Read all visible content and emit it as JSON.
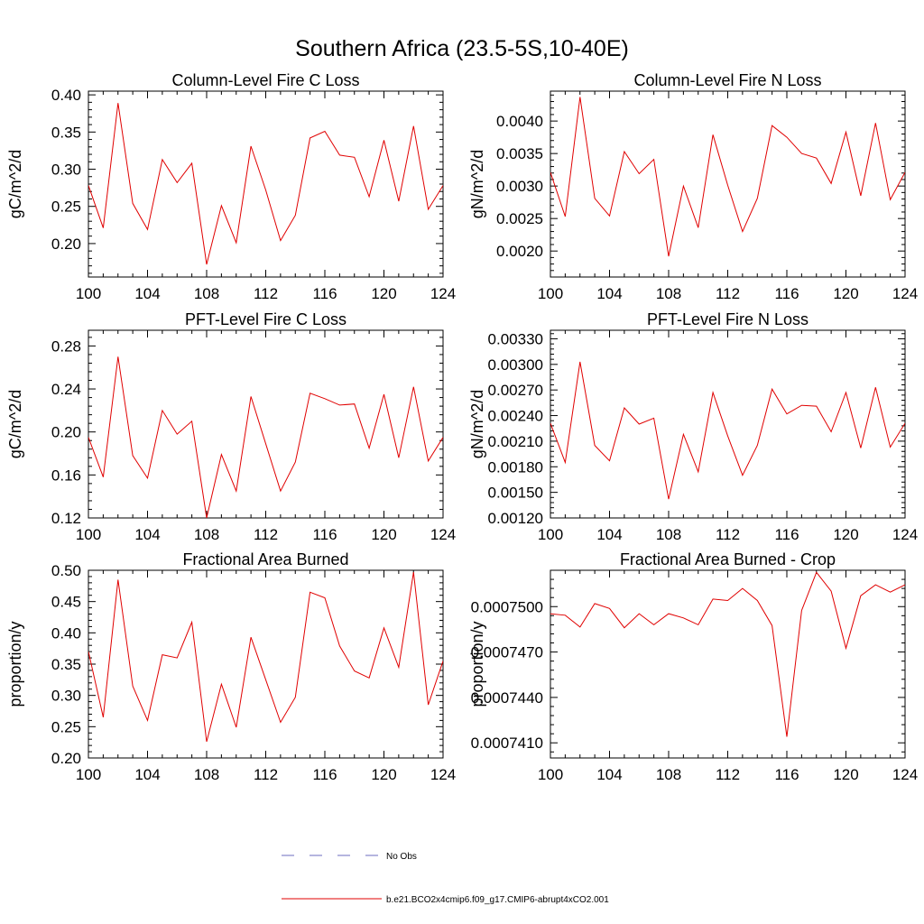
{
  "figure": {
    "title": "Southern Africa (23.5-5S,10-40E)"
  },
  "legend": {
    "entries": [
      {
        "label": "No Obs",
        "color": "#6b6bbf",
        "dash": true
      },
      {
        "label": "b.e21.BCO2x4cmip6.f09_g17.CMIP6-abrupt4xCO2.001",
        "color": "#e00000",
        "dash": false
      }
    ]
  },
  "chart_data": [
    {
      "type": "line",
      "title": "Column-Level Fire C Loss",
      "xlabel": "",
      "ylabel": "gC/m^2/d",
      "xlim": [
        100,
        124
      ],
      "ylim": [
        0.155,
        0.405
      ],
      "xticks": [
        100,
        104,
        108,
        112,
        116,
        120,
        124
      ],
      "yticks": [
        0.2,
        0.25,
        0.3,
        0.35,
        0.4
      ],
      "yticklabels": [
        "0.20",
        "0.25",
        "0.30",
        "0.35",
        "0.40"
      ],
      "series": [
        {
          "name": "b.e21.BCO2x4cmip6.f09_g17.CMIP6-abrupt4xCO2.001",
          "color": "#e00000",
          "x": [
            100,
            101,
            102,
            103,
            104,
            105,
            106,
            107,
            108,
            109,
            110,
            111,
            112,
            113,
            114,
            115,
            116,
            117,
            118,
            119,
            120,
            121,
            122,
            123,
            124
          ],
          "values": [
            0.278,
            0.221,
            0.389,
            0.254,
            0.219,
            0.313,
            0.282,
            0.308,
            0.172,
            0.251,
            0.201,
            0.331,
            0.272,
            0.204,
            0.238,
            0.342,
            0.351,
            0.319,
            0.316,
            0.263,
            0.339,
            0.257,
            0.358,
            0.246,
            0.278
          ]
        }
      ]
    },
    {
      "type": "line",
      "title": "Column-Level Fire N Loss",
      "xlabel": "",
      "ylabel": "gN/m^2/d",
      "xlim": [
        100,
        124
      ],
      "ylim": [
        0.0016,
        0.00446
      ],
      "xticks": [
        100,
        104,
        108,
        112,
        116,
        120,
        124
      ],
      "yticks": [
        0.002,
        0.0025,
        0.003,
        0.0035,
        0.004
      ],
      "yticklabels": [
        "0.0020",
        "0.0025",
        "0.0030",
        "0.0035",
        "0.0040"
      ],
      "series": [
        {
          "name": "b.e21.BCO2x4cmip6.f09_g17.CMIP6-abrupt4xCO2.001",
          "color": "#e00000",
          "x": [
            100,
            101,
            102,
            103,
            104,
            105,
            106,
            107,
            108,
            109,
            110,
            111,
            112,
            113,
            114,
            115,
            116,
            117,
            118,
            119,
            120,
            121,
            122,
            123,
            124
          ],
          "values": [
            0.00321,
            0.00253,
            0.00437,
            0.00281,
            0.00254,
            0.00353,
            0.00319,
            0.00341,
            0.00192,
            0.003,
            0.00236,
            0.00379,
            0.00301,
            0.0023,
            0.00281,
            0.00393,
            0.00375,
            0.0035,
            0.00343,
            0.00304,
            0.00383,
            0.00285,
            0.00397,
            0.00279,
            0.00321
          ]
        }
      ]
    },
    {
      "type": "line",
      "title": "PFT-Level Fire C Loss",
      "xlabel": "",
      "ylabel": "gC/m^2/d",
      "xlim": [
        100,
        124
      ],
      "ylim": [
        0.12,
        0.2946
      ],
      "xticks": [
        100,
        104,
        108,
        112,
        116,
        120,
        124
      ],
      "yticks": [
        0.12,
        0.16,
        0.2,
        0.24,
        0.28
      ],
      "yticklabels": [
        "0.12",
        "0.16",
        "0.20",
        "0.24",
        "0.28"
      ],
      "series": [
        {
          "name": "b.e21.BCO2x4cmip6.f09_g17.CMIP6-abrupt4xCO2.001",
          "color": "#e00000",
          "x": [
            100,
            101,
            102,
            103,
            104,
            105,
            106,
            107,
            108,
            109,
            110,
            111,
            112,
            113,
            114,
            115,
            116,
            117,
            118,
            119,
            120,
            121,
            122,
            123,
            124
          ],
          "values": [
            0.195,
            0.158,
            0.27,
            0.178,
            0.157,
            0.22,
            0.198,
            0.21,
            0.12,
            0.179,
            0.145,
            0.233,
            0.189,
            0.145,
            0.172,
            0.236,
            0.231,
            0.225,
            0.226,
            0.185,
            0.235,
            0.176,
            0.242,
            0.173,
            0.195
          ]
        }
      ]
    },
    {
      "type": "line",
      "title": "PFT-Level Fire N Loss",
      "xlabel": "",
      "ylabel": "gN/m^2/d",
      "xlim": [
        100,
        124
      ],
      "ylim": [
        0.0012,
        0.0034
      ],
      "xticks": [
        100,
        104,
        108,
        112,
        116,
        120,
        124
      ],
      "yticks": [
        0.0012,
        0.0015,
        0.0018,
        0.0021,
        0.0024,
        0.0027,
        0.003,
        0.0033
      ],
      "yticklabels": [
        "0.00120",
        "0.00150",
        "0.00180",
        "0.00210",
        "0.00240",
        "0.00270",
        "0.00300",
        "0.00330"
      ],
      "series": [
        {
          "name": "b.e21.BCO2x4cmip6.f09_g17.CMIP6-abrupt4xCO2.001",
          "color": "#e00000",
          "x": [
            100,
            101,
            102,
            103,
            104,
            105,
            106,
            107,
            108,
            109,
            110,
            111,
            112,
            113,
            114,
            115,
            116,
            117,
            118,
            119,
            120,
            121,
            122,
            123,
            124
          ],
          "values": [
            0.00231,
            0.00185,
            0.00303,
            0.00205,
            0.00187,
            0.00249,
            0.0023,
            0.00237,
            0.00142,
            0.00218,
            0.00174,
            0.00267,
            0.00216,
            0.0017,
            0.00205,
            0.00271,
            0.00242,
            0.00252,
            0.00251,
            0.00221,
            0.00267,
            0.00202,
            0.00273,
            0.00203,
            0.00231
          ]
        }
      ]
    },
    {
      "type": "line",
      "title": "Fractional Area Burned",
      "xlabel": "",
      "ylabel": "proportion/y",
      "xlim": [
        100,
        124
      ],
      "ylim": [
        0.2,
        0.5
      ],
      "xticks": [
        100,
        104,
        108,
        112,
        116,
        120,
        124
      ],
      "yticks": [
        0.2,
        0.25,
        0.3,
        0.35,
        0.4,
        0.45,
        0.5
      ],
      "yticklabels": [
        "0.20",
        "0.25",
        "0.30",
        "0.35",
        "0.40",
        "0.45",
        "0.50"
      ],
      "series": [
        {
          "name": "b.e21.BCO2x4cmip6.f09_g17.CMIP6-abrupt4xCO2.001",
          "color": "#e00000",
          "x": [
            100,
            101,
            102,
            103,
            104,
            105,
            106,
            107,
            108,
            109,
            110,
            111,
            112,
            113,
            114,
            115,
            116,
            117,
            118,
            119,
            120,
            121,
            122,
            123,
            124
          ],
          "values": [
            0.37,
            0.265,
            0.485,
            0.315,
            0.26,
            0.365,
            0.36,
            0.417,
            0.226,
            0.318,
            0.249,
            0.393,
            0.325,
            0.257,
            0.297,
            0.465,
            0.456,
            0.379,
            0.339,
            0.328,
            0.408,
            0.345,
            0.497,
            0.285,
            0.355
          ]
        }
      ]
    },
    {
      "type": "line",
      "title": "Fractional Area Burned - Crop",
      "xlabel": "",
      "ylabel": "proportion/y",
      "xlim": [
        100,
        124
      ],
      "ylim": [
        0.00074,
        0.0007524
      ],
      "xticks": [
        100,
        104,
        108,
        112,
        116,
        120,
        124
      ],
      "yticks": [
        0.000741,
        0.000744,
        0.000747,
        0.00075
      ],
      "yticklabels": [
        "0.0007410",
        "0.0007440",
        "0.0007470",
        "0.0007500"
      ],
      "series": [
        {
          "name": "b.e21.BCO2x4cmip6.f09_g17.CMIP6-abrupt4xCO2.001",
          "color": "#e00000",
          "x": [
            100,
            101,
            102,
            103,
            104,
            105,
            106,
            107,
            108,
            109,
            110,
            111,
            112,
            113,
            114,
            115,
            116,
            117,
            118,
            119,
            120,
            121,
            122,
            123,
            124
          ],
          "values": [
            0.00074952,
            0.00074943,
            0.00074865,
            0.0007502,
            0.00074988,
            0.0007486,
            0.00074953,
            0.0007488,
            0.00074953,
            0.00074925,
            0.0007488,
            0.0007505,
            0.0007504,
            0.0007512,
            0.0007504,
            0.00074875,
            0.0007414,
            0.00074975,
            0.00075226,
            0.00075102,
            0.00074725,
            0.00075072,
            0.00075144,
            0.00075096,
            0.00075144
          ]
        }
      ]
    }
  ]
}
